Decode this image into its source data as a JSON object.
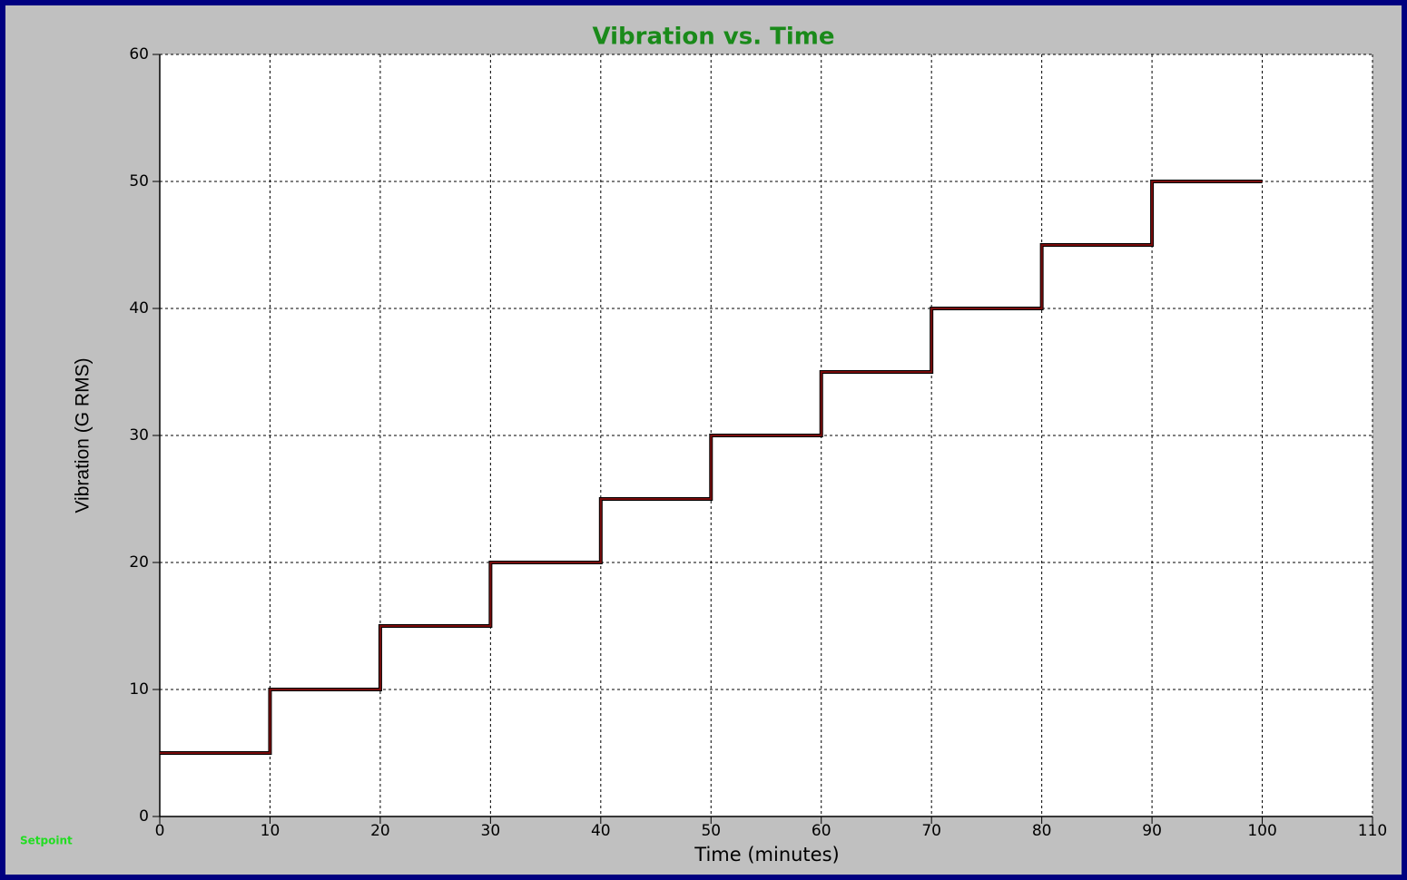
{
  "chart_data": {
    "type": "line",
    "step": "post",
    "title": "Vibration vs. Time",
    "x_label": "Time (minutes)",
    "y_label": "Vibration (G RMS)",
    "x": [
      0,
      10,
      20,
      30,
      40,
      50,
      60,
      70,
      80,
      90,
      100
    ],
    "series": [
      {
        "name": "Setpoint",
        "color": "#7a0c0c",
        "values": [
          5,
          10,
          15,
          20,
          25,
          30,
          35,
          40,
          45,
          50,
          50
        ]
      }
    ],
    "xlim": [
      0,
      110
    ],
    "xticks": [
      0,
      10,
      20,
      30,
      40,
      50,
      60,
      70,
      80,
      90,
      100,
      110
    ],
    "ylim": [
      0,
      60
    ],
    "yticks": [
      0,
      10,
      20,
      30,
      40,
      50,
      60
    ],
    "grid": true,
    "legend": "lower left"
  }
}
